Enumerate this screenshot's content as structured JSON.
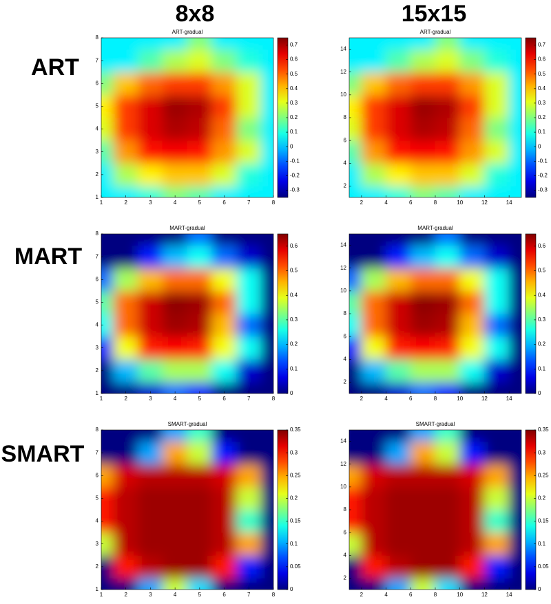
{
  "headers": {
    "columns": [
      "8x8",
      "15x15"
    ],
    "rows": [
      "ART",
      "MART",
      "SMART"
    ]
  },
  "chart_data": [
    {
      "type": "heatmap",
      "title": "ART-gradual",
      "x": [
        1,
        2,
        3,
        4,
        5,
        6,
        7,
        8
      ],
      "y": [
        1,
        2,
        3,
        4,
        5,
        6,
        7,
        8
      ],
      "xlim": [
        1,
        8
      ],
      "ylim": [
        1,
        8
      ],
      "xticks": [
        1,
        2,
        3,
        4,
        5,
        6,
        7,
        8
      ],
      "yticks": [
        1,
        2,
        3,
        4,
        5,
        6,
        7,
        8
      ],
      "clim": [
        -0.35,
        0.75
      ],
      "cticks": [
        -0.3,
        -0.2,
        -0.1,
        0,
        0.1,
        0.2,
        0.3,
        0.4,
        0.5,
        0.6,
        0.7
      ],
      "z": [
        [
          0.05,
          0.05,
          0.1,
          0.2,
          0.15,
          0.05,
          0.05,
          0.05
        ],
        [
          0.05,
          0.25,
          0.35,
          0.4,
          0.4,
          0.3,
          0.1,
          0.05
        ],
        [
          0.15,
          0.45,
          0.6,
          0.62,
          0.6,
          0.45,
          0.3,
          0.05
        ],
        [
          0.3,
          0.55,
          0.65,
          0.7,
          0.68,
          0.5,
          0.2,
          0.05
        ],
        [
          0.35,
          0.55,
          0.65,
          0.72,
          0.7,
          0.55,
          0.3,
          0.05
        ],
        [
          0.2,
          0.4,
          0.5,
          0.55,
          0.55,
          0.45,
          0.3,
          0.05
        ],
        [
          0.05,
          0.05,
          0.15,
          0.25,
          0.3,
          0.2,
          0.1,
          0.05
        ],
        [
          0.05,
          0.05,
          0.05,
          0.05,
          0.2,
          0.05,
          0.05,
          0.05
        ]
      ]
    },
    {
      "type": "heatmap",
      "title": "ART-gradual",
      "x": [
        1,
        3,
        5,
        7,
        9,
        11,
        13,
        15
      ],
      "y": [
        1,
        3,
        5,
        7,
        9,
        11,
        13,
        15
      ],
      "xlim": [
        1,
        15
      ],
      "ylim": [
        1,
        15
      ],
      "xticks": [
        2,
        4,
        6,
        8,
        10,
        12,
        14
      ],
      "yticks": [
        2,
        4,
        6,
        8,
        10,
        12,
        14
      ],
      "clim": [
        -0.35,
        0.75
      ],
      "cticks": [
        -0.3,
        -0.2,
        -0.1,
        0,
        0.1,
        0.2,
        0.3,
        0.4,
        0.5,
        0.6,
        0.7
      ],
      "z": [
        [
          0.05,
          0.05,
          0.1,
          0.2,
          0.15,
          0.05,
          0.05,
          0.05
        ],
        [
          0.05,
          0.25,
          0.35,
          0.4,
          0.4,
          0.3,
          0.1,
          0.05
        ],
        [
          0.15,
          0.45,
          0.6,
          0.62,
          0.6,
          0.45,
          0.3,
          0.05
        ],
        [
          0.3,
          0.55,
          0.65,
          0.7,
          0.68,
          0.5,
          0.2,
          0.05
        ],
        [
          0.35,
          0.55,
          0.65,
          0.72,
          0.7,
          0.55,
          0.3,
          0.05
        ],
        [
          0.2,
          0.4,
          0.5,
          0.55,
          0.55,
          0.45,
          0.3,
          0.05
        ],
        [
          0.05,
          0.05,
          0.15,
          0.25,
          0.3,
          0.2,
          0.1,
          0.05
        ],
        [
          0.05,
          0.05,
          0.05,
          0.05,
          0.2,
          0.05,
          0.05,
          0.05
        ]
      ]
    },
    {
      "type": "heatmap",
      "title": "MART-gradual",
      "x": [
        1,
        2,
        3,
        4,
        5,
        6,
        7,
        8
      ],
      "y": [
        1,
        2,
        3,
        4,
        5,
        6,
        7,
        8
      ],
      "xlim": [
        1,
        8
      ],
      "ylim": [
        1,
        8
      ],
      "xticks": [
        1,
        2,
        3,
        4,
        5,
        6,
        7,
        8
      ],
      "yticks": [
        1,
        2,
        3,
        4,
        5,
        6,
        7,
        8
      ],
      "clim": [
        0,
        0.65
      ],
      "cticks": [
        0,
        0.1,
        0.2,
        0.3,
        0.4,
        0.5,
        0.6
      ],
      "z": [
        [
          0,
          0,
          0.05,
          0.15,
          0.1,
          0,
          0,
          0
        ],
        [
          0,
          0.2,
          0.3,
          0.35,
          0.35,
          0.25,
          0.05,
          0
        ],
        [
          0.1,
          0.4,
          0.55,
          0.57,
          0.55,
          0.4,
          0.25,
          0
        ],
        [
          0.25,
          0.5,
          0.6,
          0.63,
          0.62,
          0.45,
          0.15,
          0
        ],
        [
          0.3,
          0.5,
          0.6,
          0.64,
          0.63,
          0.5,
          0.25,
          0
        ],
        [
          0.15,
          0.35,
          0.45,
          0.5,
          0.5,
          0.4,
          0.25,
          0
        ],
        [
          0,
          0,
          0.1,
          0.2,
          0.25,
          0.15,
          0.05,
          0
        ],
        [
          0,
          0,
          0,
          0,
          0.15,
          0,
          0,
          0
        ]
      ]
    },
    {
      "type": "heatmap",
      "title": "MART-gradual",
      "x": [
        1,
        3,
        5,
        7,
        9,
        11,
        13,
        15
      ],
      "y": [
        1,
        3,
        5,
        7,
        9,
        11,
        13,
        15
      ],
      "xlim": [
        1,
        15
      ],
      "ylim": [
        1,
        15
      ],
      "xticks": [
        2,
        4,
        6,
        8,
        10,
        12,
        14
      ],
      "yticks": [
        2,
        4,
        6,
        8,
        10,
        12,
        14
      ],
      "clim": [
        0,
        0.65
      ],
      "cticks": [
        0,
        0.1,
        0.2,
        0.3,
        0.4,
        0.5,
        0.6
      ],
      "z": [
        [
          0,
          0,
          0.05,
          0.15,
          0.1,
          0,
          0,
          0
        ],
        [
          0,
          0.2,
          0.3,
          0.35,
          0.35,
          0.25,
          0.05,
          0
        ],
        [
          0.1,
          0.4,
          0.55,
          0.57,
          0.55,
          0.4,
          0.25,
          0
        ],
        [
          0.25,
          0.5,
          0.6,
          0.63,
          0.62,
          0.45,
          0.15,
          0
        ],
        [
          0.3,
          0.5,
          0.6,
          0.64,
          0.63,
          0.5,
          0.25,
          0
        ],
        [
          0.15,
          0.35,
          0.45,
          0.5,
          0.5,
          0.4,
          0.25,
          0
        ],
        [
          0,
          0,
          0.1,
          0.2,
          0.25,
          0.15,
          0.05,
          0
        ],
        [
          0,
          0,
          0,
          0,
          0.15,
          0,
          0,
          0
        ]
      ]
    },
    {
      "type": "heatmap",
      "title": "SMART-gradual",
      "x": [
        1,
        2,
        3,
        4,
        5,
        6,
        7,
        8
      ],
      "y": [
        1,
        2,
        3,
        4,
        5,
        6,
        7,
        8
      ],
      "xlim": [
        1,
        8
      ],
      "ylim": [
        1,
        8
      ],
      "xticks": [
        1,
        2,
        3,
        4,
        5,
        6,
        7,
        8
      ],
      "yticks": [
        1,
        2,
        3,
        4,
        5,
        6,
        7,
        8
      ],
      "clim": [
        0,
        0.35
      ],
      "cticks": [
        0,
        0.05,
        0.1,
        0.15,
        0.2,
        0.25,
        0.3,
        0.35
      ],
      "z": [
        [
          0,
          0,
          0.1,
          0.2,
          0.12,
          0,
          0,
          0
        ],
        [
          0,
          0.3,
          0.33,
          0.34,
          0.34,
          0.3,
          0.05,
          0
        ],
        [
          0.2,
          0.33,
          0.34,
          0.34,
          0.34,
          0.33,
          0.25,
          0
        ],
        [
          0.3,
          0.33,
          0.34,
          0.34,
          0.34,
          0.33,
          0.15,
          0
        ],
        [
          0.3,
          0.33,
          0.34,
          0.34,
          0.34,
          0.33,
          0.2,
          0
        ],
        [
          0.25,
          0.32,
          0.33,
          0.33,
          0.33,
          0.32,
          0.25,
          0
        ],
        [
          0,
          0,
          0.1,
          0.25,
          0.2,
          0.05,
          0,
          0
        ],
        [
          0,
          0,
          0,
          0.1,
          0.15,
          0,
          0,
          0
        ]
      ]
    },
    {
      "type": "heatmap",
      "title": "SMART-gradual",
      "x": [
        1,
        3,
        5,
        7,
        9,
        11,
        13,
        15
      ],
      "y": [
        1,
        3,
        5,
        7,
        9,
        11,
        13,
        15
      ],
      "xlim": [
        1,
        15
      ],
      "ylim": [
        1,
        15
      ],
      "xticks": [
        2,
        4,
        6,
        8,
        10,
        12,
        14
      ],
      "yticks": [
        2,
        4,
        6,
        8,
        10,
        12,
        14
      ],
      "clim": [
        0,
        0.35
      ],
      "cticks": [
        0,
        0.05,
        0.1,
        0.15,
        0.2,
        0.25,
        0.3,
        0.35
      ],
      "z": [
        [
          0,
          0,
          0.1,
          0.2,
          0.12,
          0,
          0,
          0
        ],
        [
          0,
          0.3,
          0.33,
          0.34,
          0.34,
          0.3,
          0.05,
          0
        ],
        [
          0.2,
          0.33,
          0.34,
          0.34,
          0.34,
          0.33,
          0.25,
          0
        ],
        [
          0.3,
          0.33,
          0.34,
          0.34,
          0.34,
          0.33,
          0.15,
          0
        ],
        [
          0.3,
          0.33,
          0.34,
          0.34,
          0.34,
          0.33,
          0.2,
          0
        ],
        [
          0.25,
          0.32,
          0.33,
          0.33,
          0.33,
          0.32,
          0.25,
          0
        ],
        [
          0,
          0,
          0.1,
          0.25,
          0.2,
          0.05,
          0,
          0
        ],
        [
          0,
          0,
          0,
          0.1,
          0.15,
          0,
          0,
          0
        ]
      ]
    }
  ]
}
